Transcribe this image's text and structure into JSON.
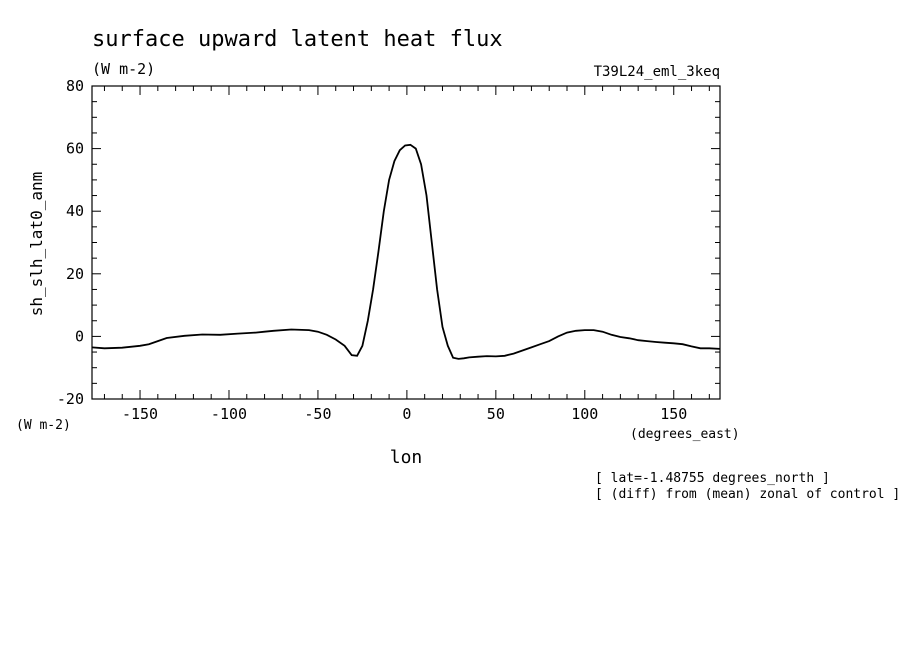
{
  "chart_data": {
    "type": "line",
    "title": "surface upward latent heat flux",
    "units": "(W m-2)",
    "run_label": "T39L24_eml_3keq",
    "ylabel": "sh_slh_lat0_anm",
    "y_units": "(W m-2)",
    "xlabel": "lon",
    "x_units": "(degrees_east)",
    "notes": [
      "[ lat=-1.48755 degrees_north ]",
      "[ (diff) from (mean) zonal of control ]"
    ],
    "xlim": [
      -177,
      176
    ],
    "ylim": [
      -20,
      80
    ],
    "xticks": [
      -150,
      -100,
      -50,
      0,
      50,
      100,
      150
    ],
    "xtick_labels": [
      "-150",
      "-100",
      "-50",
      "0",
      "50",
      "100",
      "150"
    ],
    "yticks": [
      -20,
      0,
      20,
      40,
      60,
      80
    ],
    "ytick_labels": [
      "-20",
      "0",
      "20",
      "40",
      "60",
      "80"
    ],
    "series": [
      {
        "x": [
          -177,
          -170,
          -160,
          -150,
          -145,
          -140,
          -135,
          -125,
          -115,
          -105,
          -95,
          -85,
          -80,
          -75,
          -65,
          -55,
          -50,
          -45,
          -40,
          -35,
          -31,
          -28,
          -25,
          -22,
          -19,
          -16,
          -13,
          -10,
          -7,
          -4,
          -1,
          2,
          5,
          8,
          11,
          14,
          17,
          20,
          23,
          26,
          29,
          32,
          35,
          40,
          45,
          50,
          55,
          60,
          65,
          70,
          75,
          80,
          85,
          90,
          95,
          100,
          105,
          110,
          115,
          120,
          125,
          130,
          135,
          140,
          145,
          150,
          155,
          160,
          165,
          170,
          176
        ],
        "y": [
          -3.5,
          -3.8,
          -3.6,
          -3.0,
          -2.5,
          -1.5,
          -0.5,
          0.2,
          0.6,
          0.5,
          0.9,
          1.2,
          1.5,
          1.8,
          2.2,
          2.0,
          1.5,
          0.5,
          -1.0,
          -3.0,
          -6.0,
          -6.2,
          -3.0,
          5.0,
          15.0,
          27.0,
          40.0,
          50.0,
          56.0,
          59.5,
          61.0,
          61.2,
          60.0,
          55.0,
          45.0,
          30.0,
          15.0,
          3.0,
          -3.0,
          -6.8,
          -7.2,
          -7.0,
          -6.7,
          -6.5,
          -6.3,
          -6.4,
          -6.2,
          -5.5,
          -4.5,
          -3.5,
          -2.5,
          -1.5,
          0.0,
          1.2,
          1.8,
          2.0,
          2.0,
          1.5,
          0.5,
          -0.2,
          -0.6,
          -1.2,
          -1.5,
          -1.8,
          -2.0,
          -2.2,
          -2.5,
          -3.2,
          -3.8,
          -3.8,
          -4.0
        ]
      }
    ]
  }
}
